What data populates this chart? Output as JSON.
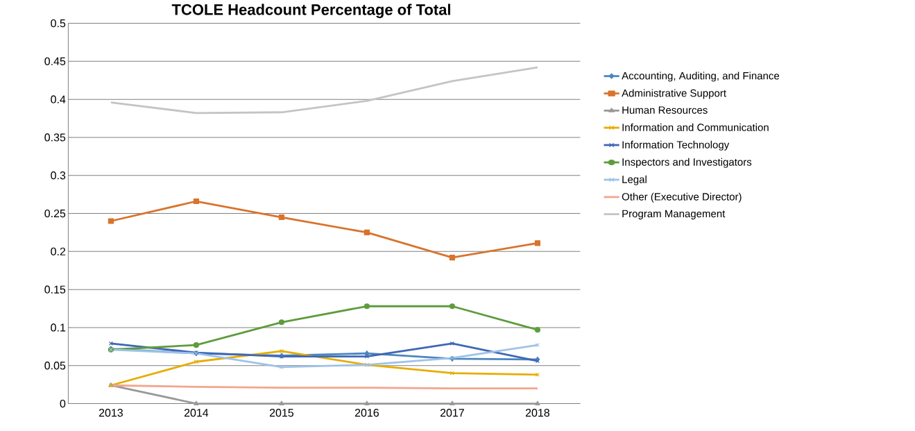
{
  "chart_data": {
    "type": "line",
    "title": "TCOLE Headcount Percentage of Total",
    "categories": [
      "2013",
      "2014",
      "2015",
      "2016",
      "2017",
      "2018"
    ],
    "ylim": [
      0,
      0.5
    ],
    "yticks": [
      0,
      0.05,
      0.1,
      0.15,
      0.2,
      0.25,
      0.3,
      0.35,
      0.4,
      0.45,
      0.5
    ],
    "grid": "y",
    "legend": "right",
    "line_style": "solid",
    "series": [
      {
        "name": "Accounting, Auditing, and Finance",
        "color": "#4a86c0",
        "marker": "diamond",
        "values": [
          0.072,
          0.066,
          0.063,
          0.066,
          0.059,
          0.058
        ]
      },
      {
        "name": "Administrative Support",
        "color": "#d9732c",
        "marker": "square",
        "values": [
          0.24,
          0.266,
          0.245,
          0.225,
          0.192,
          0.211
        ]
      },
      {
        "name": "Human Resources",
        "color": "#999999",
        "marker": "triangle",
        "values": [
          0.024,
          0,
          0,
          0,
          0,
          0
        ]
      },
      {
        "name": "Information and Communication",
        "color": "#e6ad00",
        "marker": "cross",
        "values": [
          0.024,
          0.055,
          0.069,
          0.051,
          0.04,
          0.038
        ]
      },
      {
        "name": "Information Technology",
        "color": "#3f67b5",
        "marker": "cross",
        "values": [
          0.079,
          0.067,
          0.062,
          0.062,
          0.079,
          0.056
        ]
      },
      {
        "name": "Inspectors and Investigators",
        "color": "#5e9c3c",
        "marker": "circle",
        "values": [
          0.071,
          0.077,
          0.107,
          0.128,
          0.128,
          0.097
        ]
      },
      {
        "name": "Legal",
        "color": "#9ec2e8",
        "marker": "cross",
        "values": [
          0.071,
          0.066,
          0.048,
          0.051,
          0.06,
          0.077
        ]
      },
      {
        "name": "Other (Executive Director)",
        "color": "#f2a68c",
        "marker": "none",
        "values": [
          0.024,
          0.022,
          0.021,
          0.021,
          0.02,
          0.02
        ]
      },
      {
        "name": "Program Management",
        "color": "#c4c4c4",
        "marker": "none",
        "values": [
          0.396,
          0.382,
          0.383,
          0.398,
          0.424,
          0.442
        ]
      }
    ]
  }
}
